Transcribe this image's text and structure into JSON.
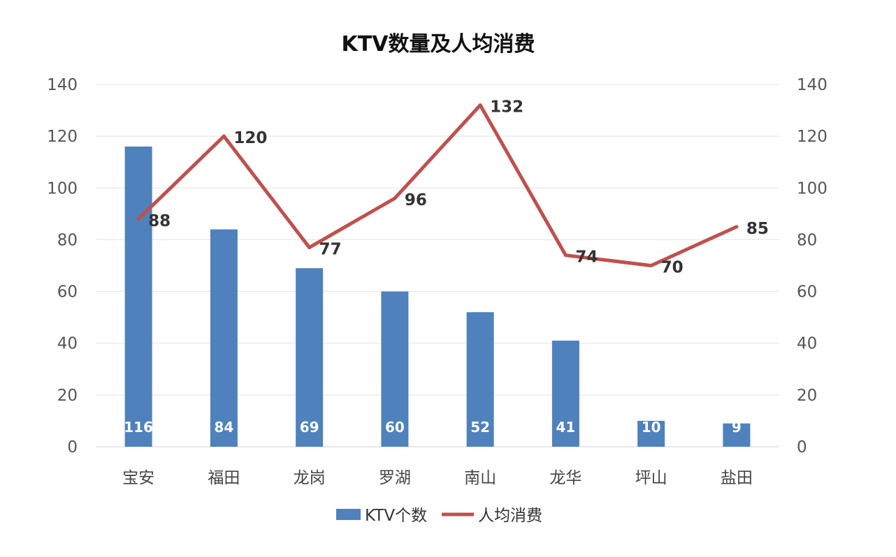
{
  "chart_data": {
    "type": "bar",
    "title": "KTV数量及人均消费",
    "categories": [
      "宝安",
      "福田",
      "龙岗",
      "罗湖",
      "南山",
      "龙华",
      "坪山",
      "盐田"
    ],
    "series": [
      {
        "name": "KTV个数",
        "type": "bar",
        "axis": "left",
        "color": "#4F81BD",
        "values": [
          116,
          84,
          69,
          60,
          52,
          41,
          10,
          9
        ]
      },
      {
        "name": "人均消费",
        "type": "line",
        "axis": "right",
        "color": "#C0504D",
        "values": [
          88,
          120,
          77,
          96,
          132,
          74,
          70,
          85
        ]
      }
    ],
    "ylim": [
      0,
      140
    ],
    "y2lim": [
      0,
      140
    ],
    "yticks": [
      "0",
      "20",
      "40",
      "60",
      "80",
      "100",
      "120",
      "140"
    ],
    "y2ticks": [
      "0",
      "20",
      "40",
      "60",
      "80",
      "100",
      "120",
      "140"
    ],
    "xlabel": "",
    "ylabel": "",
    "grid": true,
    "legend": "bottom"
  }
}
